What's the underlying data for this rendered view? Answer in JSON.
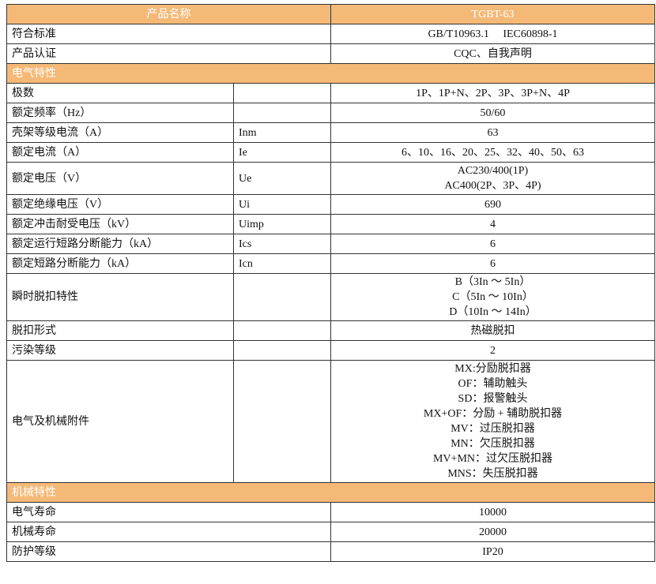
{
  "header": {
    "name_label": "产品名称",
    "model": "TGBT-63"
  },
  "colors": {
    "header_bg": "#F5B977",
    "header_text": "#ffffff"
  },
  "general_rows": [
    {
      "label": "符合标准",
      "value": "GB/T10963.1　 IEC60898-1"
    },
    {
      "label": "产品认证",
      "value": "CQC、自我声明"
    }
  ],
  "section_electrical": "电气特性",
  "electrical_rows": [
    {
      "label": "极数",
      "symbol": "",
      "values": [
        "1P、1P+N、2P、3P、3P+N、4P"
      ]
    },
    {
      "label": "额定频率（Hz）",
      "symbol": "",
      "values": [
        "50/60"
      ]
    },
    {
      "label": "壳架等级电流（A）",
      "symbol": "Inm",
      "values": [
        "63"
      ]
    },
    {
      "label": "额定电流（A）",
      "symbol": "Ie",
      "values": [
        "6、10、16、20、25、32、40、50、63"
      ]
    },
    {
      "label": "额定电压（V）",
      "symbol": "Ue",
      "values": [
        "AC230/400(1P)",
        "AC400(2P、3P、4P)"
      ]
    },
    {
      "label": "额定绝缘电压（V）",
      "symbol": "Ui",
      "values": [
        "690"
      ]
    },
    {
      "label": "额定冲击耐受电压（kV）",
      "symbol": "Uimp",
      "values": [
        "4"
      ]
    },
    {
      "label": "额定运行短路分断能力（kA）",
      "symbol": "Ics",
      "values": [
        "6"
      ]
    },
    {
      "label": "额定短路分断能力（kA）",
      "symbol": "Icn",
      "values": [
        "6"
      ]
    },
    {
      "label": "瞬时脱扣特性",
      "symbol": "",
      "values": [
        "B（3In ～ 5In）",
        "C（5In ～ 10In）",
        "D（10In ～ 14In）"
      ]
    },
    {
      "label": "脱扣形式",
      "symbol": "",
      "values": [
        "热磁脱扣"
      ]
    },
    {
      "label": "污染等级",
      "symbol": "",
      "values": [
        "2"
      ]
    },
    {
      "label": "电气及机械附件",
      "symbol": "",
      "values": [
        "MX:分励脱扣器",
        "OF：辅助触头",
        "SD：报警触头",
        "MX+OF：分励 + 辅助脱扣器",
        "MV：过压脱扣器",
        "MN：欠压脱扣器",
        "MV+MN：过欠压脱扣器",
        "MNS：失压脱扣器"
      ]
    }
  ],
  "section_mechanical": "机械特性",
  "mechanical_rows": [
    {
      "label": "电气寿命",
      "value": "10000"
    },
    {
      "label": "机械寿命",
      "value": "20000"
    },
    {
      "label": "防护等级",
      "value": "IP20"
    }
  ]
}
